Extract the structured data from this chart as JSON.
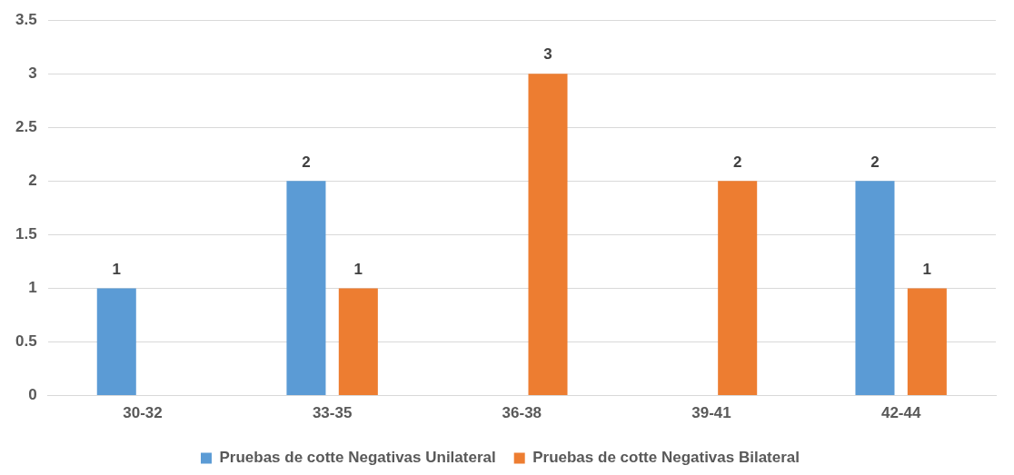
{
  "chart_data": {
    "type": "bar",
    "categories": [
      "30-32",
      "33-35",
      "36-38",
      "39-41",
      "42-44"
    ],
    "series": [
      {
        "name": "Pruebas de cotte Negativas Unilateral",
        "color": "#5b9bd5",
        "values": [
          1,
          2,
          0,
          0,
          2
        ],
        "value_labels": [
          "1",
          "2",
          null,
          null,
          "2"
        ]
      },
      {
        "name": "Pruebas de cotte Negativas Bilateral",
        "color": "#ed7d31",
        "values": [
          0,
          1,
          3,
          2,
          1
        ],
        "value_labels": [
          null,
          "1",
          "3",
          "2",
          "1"
        ]
      }
    ],
    "ylim": [
      0,
      3.5
    ],
    "yticks": [
      0,
      0.5,
      1,
      1.5,
      2,
      2.5,
      3,
      3.5
    ],
    "grid": "y",
    "legend": "bottom"
  }
}
